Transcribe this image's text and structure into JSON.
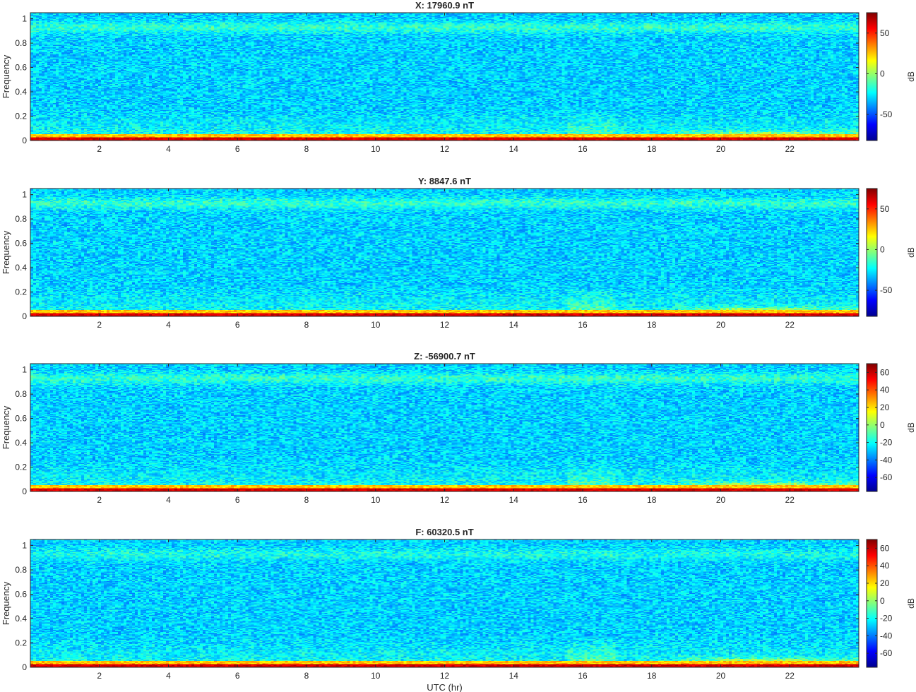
{
  "chart_data": [
    {
      "type": "heatmap",
      "title": "X: 17960.9 nT",
      "xlabel": "",
      "ylabel": "Frequency",
      "xlim": [
        0,
        24
      ],
      "ylim": [
        0,
        1.05
      ],
      "x_ticks": [
        "2",
        "4",
        "6",
        "8",
        "10",
        "12",
        "14",
        "16",
        "18",
        "20",
        "22"
      ],
      "y_ticks": [
        "0",
        "0.2",
        "0.4",
        "0.6",
        "0.8",
        "1"
      ],
      "colorbar": {
        "label": "dB",
        "range": [
          -82,
          75
        ],
        "ticks": [
          -50,
          0,
          50
        ]
      },
      "colormap": "jet"
    },
    {
      "type": "heatmap",
      "title": "Y: 8847.6 nT",
      "xlabel": "",
      "ylabel": "Frequency",
      "xlim": [
        0,
        24
      ],
      "ylim": [
        0,
        1.05
      ],
      "x_ticks": [
        "2",
        "4",
        "6",
        "8",
        "10",
        "12",
        "14",
        "16",
        "18",
        "20",
        "22"
      ],
      "y_ticks": [
        "0",
        "0.2",
        "0.4",
        "0.6",
        "0.8",
        "1"
      ],
      "colorbar": {
        "label": "dB",
        "range": [
          -82,
          75
        ],
        "ticks": [
          -50,
          0,
          50
        ]
      },
      "colormap": "jet"
    },
    {
      "type": "heatmap",
      "title": "Z: -56900.7 nT",
      "xlabel": "",
      "ylabel": "Frequency",
      "xlim": [
        0,
        24
      ],
      "ylim": [
        0,
        1.05
      ],
      "x_ticks": [
        "2",
        "4",
        "6",
        "8",
        "10",
        "12",
        "14",
        "16",
        "18",
        "20",
        "22"
      ],
      "y_ticks": [
        "0",
        "0.2",
        "0.4",
        "0.6",
        "0.8",
        "1"
      ],
      "colorbar": {
        "label": "dB",
        "range": [
          -76,
          70
        ],
        "ticks": [
          -60,
          -40,
          -20,
          0,
          20,
          40,
          60
        ]
      },
      "colormap": "jet"
    },
    {
      "type": "heatmap",
      "title": "F: 60320.5 nT",
      "xlabel": "UTC (hr)",
      "ylabel": "Frequency",
      "xlim": [
        0,
        24
      ],
      "ylim": [
        0,
        1.05
      ],
      "x_ticks": [
        "2",
        "4",
        "6",
        "8",
        "10",
        "12",
        "14",
        "16",
        "18",
        "20",
        "22"
      ],
      "y_ticks": [
        "0",
        "0.2",
        "0.4",
        "0.6",
        "0.8",
        "1"
      ],
      "colorbar": {
        "label": "dB",
        "range": [
          -76,
          70
        ],
        "ticks": [
          -60,
          -40,
          -20,
          0,
          20,
          40,
          60
        ]
      },
      "colormap": "jet"
    }
  ]
}
